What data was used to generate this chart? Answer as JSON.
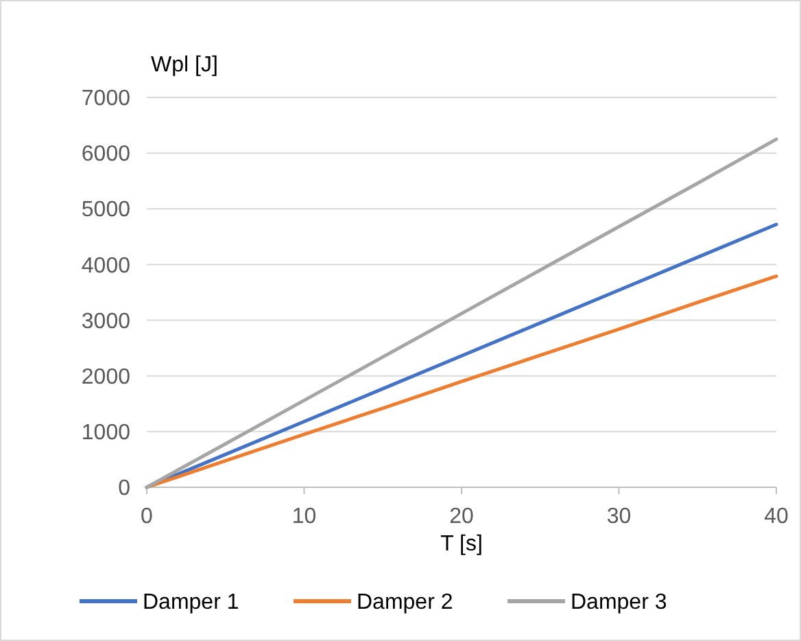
{
  "chart_data": {
    "type": "line",
    "xlabel": "T [s]",
    "ylabel": "Wpl [J]",
    "x": [
      0,
      5,
      10,
      15,
      20,
      25,
      30,
      35,
      40
    ],
    "series": [
      {
        "name": "Damper 1",
        "color": "#4472c4",
        "values": [
          0,
          590,
          1180,
          1770,
          2360,
          2950,
          3540,
          4130,
          4720
        ]
      },
      {
        "name": "Damper 2",
        "color": "#ed7d31",
        "values": [
          0,
          475,
          950,
          1420,
          1900,
          2370,
          2840,
          3320,
          3790
        ]
      },
      {
        "name": "Damper 3",
        "color": "#a5a5a5",
        "values": [
          0,
          780,
          1560,
          2340,
          3120,
          3900,
          4680,
          5460,
          6250
        ]
      }
    ],
    "xlim": [
      0,
      40
    ],
    "xticks": [
      0,
      10,
      20,
      30,
      40
    ],
    "ylim": [
      0,
      7000
    ],
    "yticks": [
      0,
      1000,
      2000,
      3000,
      4000,
      5000,
      6000,
      7000
    ],
    "grid": "y",
    "legend": "bottom",
    "marker": "none",
    "line_style": "solid"
  }
}
